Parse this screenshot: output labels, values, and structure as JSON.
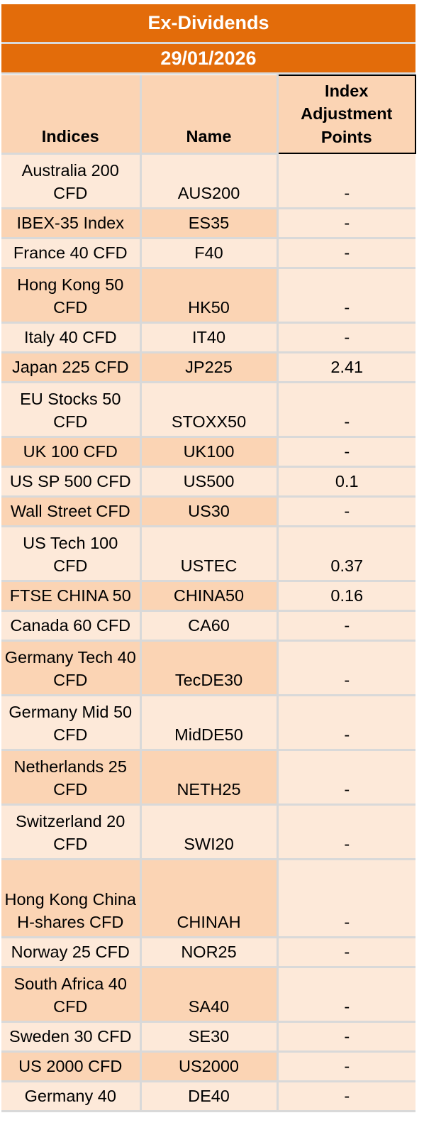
{
  "title": "Ex-Dividends",
  "date": "29/01/2026",
  "columns": [
    "Indices",
    "Name",
    "Index Adjustment Points"
  ],
  "rows": [
    {
      "index": "Australia 200 CFD",
      "name": "AUS200",
      "points": "-"
    },
    {
      "index": "IBEX-35 Index",
      "name": "ES35",
      "points": "-"
    },
    {
      "index": "France 40 CFD",
      "name": "F40",
      "points": "-"
    },
    {
      "index": "Hong Kong 50 CFD",
      "name": "HK50",
      "points": "-"
    },
    {
      "index": "Italy 40 CFD",
      "name": "IT40",
      "points": "-"
    },
    {
      "index": "Japan 225 CFD",
      "name": "JP225",
      "points": "2.41"
    },
    {
      "index": "EU Stocks 50 CFD",
      "name": "STOXX50",
      "points": "-"
    },
    {
      "index": "UK 100 CFD",
      "name": "UK100",
      "points": "-"
    },
    {
      "index": "US SP 500 CFD",
      "name": "US500",
      "points": "0.1"
    },
    {
      "index": "Wall Street CFD",
      "name": "US30",
      "points": "-"
    },
    {
      "index": "US Tech 100 CFD",
      "name": "USTEC",
      "points": "0.37"
    },
    {
      "index": "FTSE CHINA 50",
      "name": "CHINA50",
      "points": "0.16"
    },
    {
      "index": "Canada 60 CFD",
      "name": "CA60",
      "points": "-"
    },
    {
      "index": "Germany Tech 40 CFD",
      "name": "TecDE30",
      "points": "-"
    },
    {
      "index": "Germany Mid 50 CFD",
      "name": "MidDE50",
      "points": "-"
    },
    {
      "index": "Netherlands 25 CFD",
      "name": "NETH25",
      "points": "-"
    },
    {
      "index": "Switzerland 20 CFD",
      "name": "SWI20",
      "points": "-"
    },
    {
      "index": "Hong Kong China H-shares CFD",
      "name": "CHINAH",
      "points": "-"
    },
    {
      "index": "Norway 25 CFD",
      "name": "NOR25",
      "points": "-"
    },
    {
      "index": "South Africa 40 CFD",
      "name": "SA40",
      "points": "-"
    },
    {
      "index": "Sweden 30 CFD",
      "name": "SE30",
      "points": "-"
    },
    {
      "index": "US 2000 CFD",
      "name": "US2000",
      "points": "-"
    },
    {
      "index": "Germany 40",
      "name": "DE40",
      "points": "-"
    }
  ]
}
